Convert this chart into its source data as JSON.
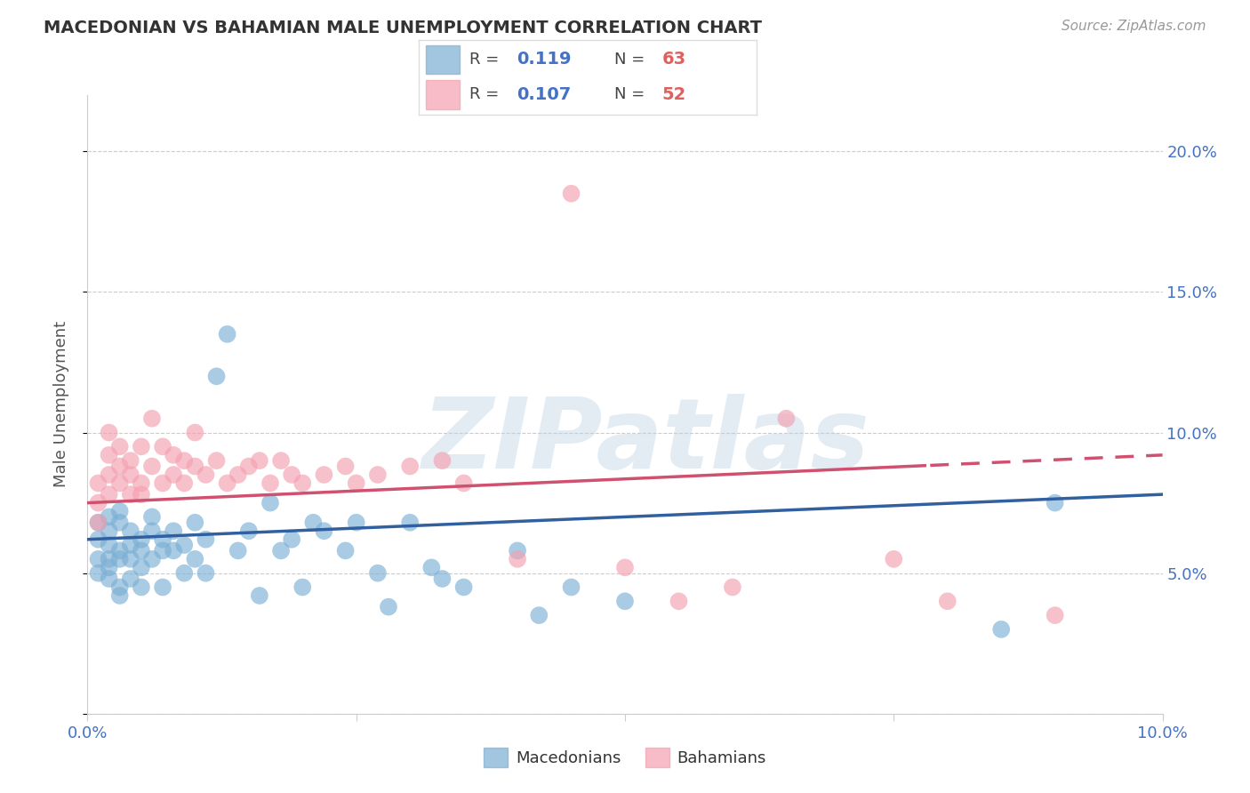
{
  "title": "MACEDONIAN VS BAHAMIAN MALE UNEMPLOYMENT CORRELATION CHART",
  "source": "Source: ZipAtlas.com",
  "ylabel": "Male Unemployment",
  "xlim": [
    0.0,
    0.1
  ],
  "ylim": [
    0.0,
    0.22
  ],
  "xticks": [
    0.0,
    0.025,
    0.05,
    0.075,
    0.1
  ],
  "xtick_labels": [
    "0.0%",
    "",
    "",
    "",
    "10.0%"
  ],
  "ytick_vals": [
    0.0,
    0.05,
    0.1,
    0.15,
    0.2
  ],
  "ytick_labels_right": [
    "",
    "5.0%",
    "10.0%",
    "15.0%",
    "20.0%"
  ],
  "macedonian_color": "#7bafd4",
  "bahamian_color": "#f4a0b0",
  "macedonian_line_color": "#3060a0",
  "bahamian_line_color": "#d05070",
  "macedonian_R": "0.119",
  "macedonian_N": "63",
  "bahamian_R": "0.107",
  "bahamian_N": "52",
  "watermark": "ZIPatlas",
  "background_color": "#ffffff",
  "grid_color": "#cccccc",
  "title_color": "#333333",
  "tick_label_color": "#4472c4",
  "legend_R_color": "#4472c4",
  "legend_N_color": "#e06060",
  "macedonian_x": [
    0.001,
    0.001,
    0.001,
    0.001,
    0.002,
    0.002,
    0.002,
    0.002,
    0.002,
    0.002,
    0.003,
    0.003,
    0.003,
    0.003,
    0.003,
    0.003,
    0.004,
    0.004,
    0.004,
    0.004,
    0.005,
    0.005,
    0.005,
    0.005,
    0.006,
    0.006,
    0.006,
    0.007,
    0.007,
    0.007,
    0.008,
    0.008,
    0.009,
    0.009,
    0.01,
    0.01,
    0.011,
    0.011,
    0.012,
    0.013,
    0.014,
    0.015,
    0.016,
    0.017,
    0.018,
    0.019,
    0.02,
    0.021,
    0.022,
    0.024,
    0.025,
    0.027,
    0.028,
    0.03,
    0.032,
    0.033,
    0.035,
    0.04,
    0.042,
    0.045,
    0.05,
    0.085,
    0.09
  ],
  "macedonian_y": [
    0.062,
    0.068,
    0.055,
    0.05,
    0.065,
    0.07,
    0.06,
    0.055,
    0.052,
    0.048,
    0.068,
    0.072,
    0.058,
    0.055,
    0.045,
    0.042,
    0.065,
    0.06,
    0.055,
    0.048,
    0.062,
    0.058,
    0.052,
    0.045,
    0.07,
    0.065,
    0.055,
    0.062,
    0.058,
    0.045,
    0.065,
    0.058,
    0.06,
    0.05,
    0.068,
    0.055,
    0.062,
    0.05,
    0.12,
    0.135,
    0.058,
    0.065,
    0.042,
    0.075,
    0.058,
    0.062,
    0.045,
    0.068,
    0.065,
    0.058,
    0.068,
    0.05,
    0.038,
    0.068,
    0.052,
    0.048,
    0.045,
    0.058,
    0.035,
    0.045,
    0.04,
    0.03,
    0.075
  ],
  "bahamian_x": [
    0.001,
    0.001,
    0.001,
    0.002,
    0.002,
    0.002,
    0.002,
    0.003,
    0.003,
    0.003,
    0.004,
    0.004,
    0.004,
    0.005,
    0.005,
    0.005,
    0.006,
    0.006,
    0.007,
    0.007,
    0.008,
    0.008,
    0.009,
    0.009,
    0.01,
    0.01,
    0.011,
    0.012,
    0.013,
    0.014,
    0.015,
    0.016,
    0.017,
    0.018,
    0.019,
    0.02,
    0.022,
    0.024,
    0.025,
    0.027,
    0.03,
    0.033,
    0.035,
    0.04,
    0.045,
    0.05,
    0.055,
    0.06,
    0.065,
    0.075,
    0.08,
    0.09
  ],
  "bahamian_y": [
    0.075,
    0.068,
    0.082,
    0.085,
    0.078,
    0.092,
    0.1,
    0.088,
    0.082,
    0.095,
    0.078,
    0.09,
    0.085,
    0.082,
    0.095,
    0.078,
    0.088,
    0.105,
    0.082,
    0.095,
    0.085,
    0.092,
    0.082,
    0.09,
    0.088,
    0.1,
    0.085,
    0.09,
    0.082,
    0.085,
    0.088,
    0.09,
    0.082,
    0.09,
    0.085,
    0.082,
    0.085,
    0.088,
    0.082,
    0.085,
    0.088,
    0.09,
    0.082,
    0.055,
    0.185,
    0.052,
    0.04,
    0.045,
    0.105,
    0.055,
    0.04,
    0.035
  ]
}
